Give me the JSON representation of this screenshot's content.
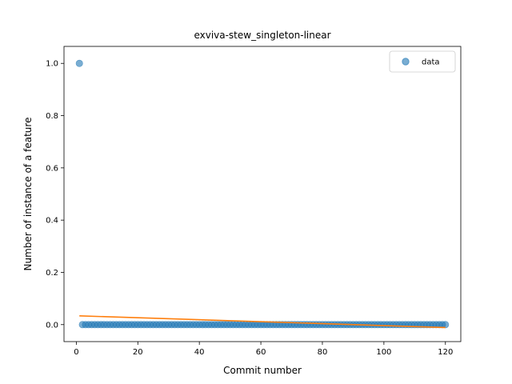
{
  "chart_data": {
    "type": "scatter",
    "title": "exviva-stew_singleton-linear",
    "xlabel": "Commit number",
    "ylabel": "Number of instance of a feature",
    "xlim": [
      -4,
      125
    ],
    "ylim": [
      -0.065,
      1.065
    ],
    "xticks": [
      0,
      20,
      40,
      60,
      80,
      100,
      120
    ],
    "xtick_labels": [
      "0",
      "20",
      "40",
      "60",
      "80",
      "100",
      "120"
    ],
    "yticks": [
      0.0,
      0.2,
      0.4,
      0.6,
      0.8,
      1.0
    ],
    "ytick_labels": [
      "0.0",
      "0.2",
      "0.4",
      "0.6",
      "0.8",
      "1.0"
    ],
    "legend": {
      "placement": "top-right",
      "entries": [
        "data"
      ]
    },
    "grid": false,
    "series": [
      {
        "name": "data",
        "kind": "scatter",
        "color": "#1f77b4",
        "x_start": 1,
        "x_end": 120,
        "x_step": 1,
        "y_rule": "first point 1.0, all remaining points 0.0",
        "y_first": 1.0,
        "y_rest": 0.0
      },
      {
        "kind": "line",
        "color": "#ff7f0e",
        "x": [
          1,
          120
        ],
        "y": [
          0.0335,
          -0.0113
        ]
      }
    ]
  }
}
